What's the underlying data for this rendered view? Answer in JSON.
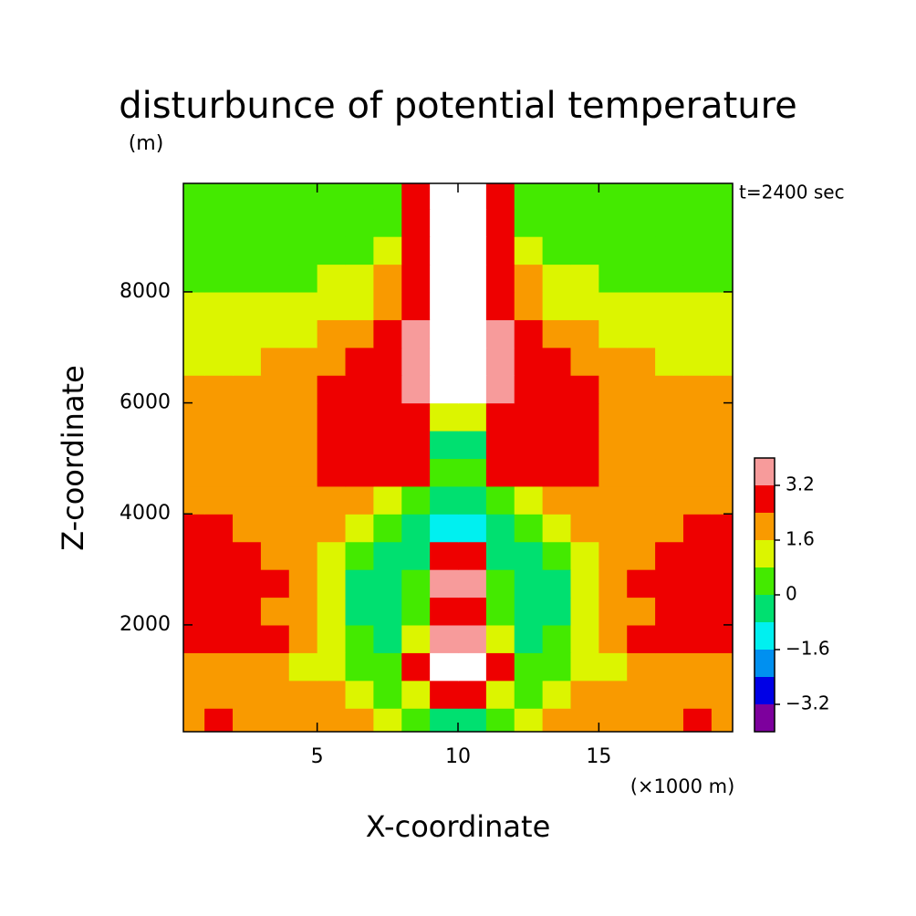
{
  "chart_data": {
    "type": "contour",
    "title": "disturbunce of potential temperature",
    "y_unit": "(m)",
    "time_label": "t=2400 sec",
    "x_unit": "(×1000 m)",
    "x_label": "X-coordinate",
    "y_label": "Z-coordinate",
    "xlim": [
      0.25,
      19.75
    ],
    "ylim": [
      75,
      9955
    ],
    "xticks": [
      5,
      10,
      15
    ],
    "yticks": [
      2000,
      4000,
      6000,
      8000
    ],
    "x": [
      0.5,
      1.5,
      2.5,
      3.5,
      4.5,
      5.5,
      6.5,
      7.5,
      8.5,
      9.5,
      10.5,
      11.5,
      12.5,
      13.5,
      14.5,
      15.5,
      16.5,
      17.5,
      18.5,
      19.5
    ],
    "y": [
      250,
      750,
      1250,
      1750,
      2250,
      2750,
      3250,
      3750,
      4250,
      4750,
      5250,
      5750,
      6250,
      6750,
      7250,
      7750,
      8250,
      8750,
      9250,
      9750
    ],
    "z": [
      [
        2.0,
        2.8,
        2.0,
        2.0,
        2.0,
        2.0,
        2.0,
        1.2,
        0.4,
        -0.4,
        -0.4,
        0.4,
        1.2,
        2.0,
        2.0,
        2.0,
        2.0,
        2.0,
        2.8,
        2.0
      ],
      [
        2.0,
        2.0,
        2.0,
        2.0,
        2.0,
        2.0,
        1.2,
        0.4,
        1.2,
        2.8,
        2.8,
        1.2,
        0.4,
        1.2,
        2.0,
        2.0,
        2.0,
        2.0,
        2.0,
        2.0
      ],
      [
        2.0,
        2.0,
        2.0,
        2.0,
        1.2,
        1.2,
        0.4,
        0.4,
        2.8,
        4.4,
        4.4,
        2.8,
        0.4,
        0.4,
        1.2,
        1.2,
        2.0,
        2.0,
        2.0,
        2.0
      ],
      [
        2.8,
        2.8,
        2.8,
        2.8,
        2.0,
        1.2,
        0.4,
        -0.4,
        1.2,
        3.6,
        3.6,
        1.2,
        -0.4,
        0.4,
        1.2,
        2.0,
        2.8,
        2.8,
        2.8,
        2.8
      ],
      [
        2.8,
        2.8,
        2.8,
        2.0,
        2.0,
        1.2,
        -0.4,
        -0.4,
        0.4,
        2.8,
        2.8,
        0.4,
        -0.4,
        -0.4,
        1.2,
        2.0,
        2.0,
        2.8,
        2.8,
        2.8
      ],
      [
        2.8,
        2.8,
        2.8,
        2.8,
        2.0,
        1.2,
        -0.4,
        -0.4,
        0.4,
        3.6,
        3.6,
        0.4,
        -0.4,
        -0.4,
        1.2,
        2.0,
        2.8,
        2.8,
        2.8,
        2.8
      ],
      [
        2.8,
        2.8,
        2.8,
        2.0,
        2.0,
        1.2,
        0.4,
        -0.4,
        -0.4,
        2.8,
        2.8,
        -0.4,
        -0.4,
        0.4,
        1.2,
        2.0,
        2.0,
        2.8,
        2.8,
        2.8
      ],
      [
        2.8,
        2.8,
        2.0,
        2.0,
        2.0,
        2.0,
        1.2,
        0.4,
        -0.4,
        -1.2,
        -1.2,
        -0.4,
        0.4,
        1.2,
        2.0,
        2.0,
        2.0,
        2.0,
        2.8,
        2.8
      ],
      [
        2.0,
        2.0,
        2.0,
        2.0,
        2.0,
        2.0,
        2.0,
        1.2,
        0.4,
        -0.4,
        -0.4,
        0.4,
        1.2,
        2.0,
        2.0,
        2.0,
        2.0,
        2.0,
        2.0,
        2.0
      ],
      [
        2.0,
        2.0,
        2.0,
        2.0,
        2.0,
        2.8,
        2.8,
        2.8,
        2.8,
        0.4,
        0.4,
        2.8,
        2.8,
        2.8,
        2.8,
        2.0,
        2.0,
        2.0,
        2.0,
        2.0
      ],
      [
        2.0,
        2.0,
        2.0,
        2.0,
        2.0,
        2.8,
        2.8,
        2.8,
        2.8,
        -0.4,
        -0.4,
        2.8,
        2.8,
        2.8,
        2.8,
        2.0,
        2.0,
        2.0,
        2.0,
        2.0
      ],
      [
        2.0,
        2.0,
        2.0,
        2.0,
        2.0,
        2.8,
        2.8,
        2.8,
        2.8,
        1.2,
        1.2,
        2.8,
        2.8,
        2.8,
        2.8,
        2.0,
        2.0,
        2.0,
        2.0,
        2.0
      ],
      [
        2.0,
        2.0,
        2.0,
        2.0,
        2.0,
        2.8,
        2.8,
        2.8,
        3.6,
        4.4,
        4.4,
        3.6,
        2.8,
        2.8,
        2.8,
        2.0,
        2.0,
        2.0,
        2.0,
        2.0
      ],
      [
        1.2,
        1.2,
        1.2,
        2.0,
        2.0,
        2.0,
        2.8,
        2.8,
        3.6,
        4.4,
        4.4,
        3.6,
        2.8,
        2.8,
        2.0,
        2.0,
        2.0,
        1.2,
        1.2,
        1.2
      ],
      [
        1.2,
        1.2,
        1.2,
        1.2,
        1.2,
        2.0,
        2.0,
        2.8,
        3.6,
        4.4,
        4.4,
        3.6,
        2.8,
        2.0,
        2.0,
        1.2,
        1.2,
        1.2,
        1.2,
        1.2
      ],
      [
        1.2,
        1.2,
        1.2,
        1.2,
        1.2,
        1.2,
        1.2,
        2.0,
        2.8,
        4.4,
        4.4,
        2.8,
        2.0,
        1.2,
        1.2,
        1.2,
        1.2,
        1.2,
        1.2,
        1.2
      ],
      [
        0.4,
        0.4,
        0.4,
        0.4,
        0.4,
        1.2,
        1.2,
        2.0,
        2.8,
        4.4,
        4.4,
        2.8,
        2.0,
        1.2,
        1.2,
        0.4,
        0.4,
        0.4,
        0.4,
        0.4
      ],
      [
        0.4,
        0.4,
        0.4,
        0.4,
        0.4,
        0.4,
        0.4,
        1.2,
        2.8,
        4.4,
        4.4,
        2.8,
        1.2,
        0.4,
        0.4,
        0.4,
        0.4,
        0.4,
        0.4,
        0.4
      ],
      [
        0.4,
        0.4,
        0.4,
        0.4,
        0.4,
        0.4,
        0.4,
        0.4,
        2.8,
        4.4,
        4.4,
        2.8,
        0.4,
        0.4,
        0.4,
        0.4,
        0.4,
        0.4,
        0.4,
        0.4
      ],
      [
        0.4,
        0.4,
        0.4,
        0.4,
        0.4,
        0.4,
        0.4,
        0.4,
        2.8,
        4.4,
        4.4,
        2.8,
        0.4,
        0.4,
        0.4,
        0.4,
        0.4,
        0.4,
        0.4,
        0.4
      ]
    ],
    "levels": [
      -4.0,
      -3.2,
      -2.4,
      -1.6,
      -0.8,
      0,
      0.8,
      1.6,
      2.4,
      3.2,
      4.0
    ],
    "colors": [
      "#7d009d",
      "#0000e6",
      "#0090f0",
      "#00f0f0",
      "#00e070",
      "#44ea00",
      "#dcf500",
      "#f99a00",
      "#ee0000",
      "#f79b9b"
    ],
    "above_color": "#ffffff",
    "colorbar_ticks": [
      3.2,
      1.6,
      0,
      {
        "value": -1.6,
        "label": "−1.6"
      },
      {
        "value": -3.2,
        "label": "−3.2"
      }
    ]
  }
}
